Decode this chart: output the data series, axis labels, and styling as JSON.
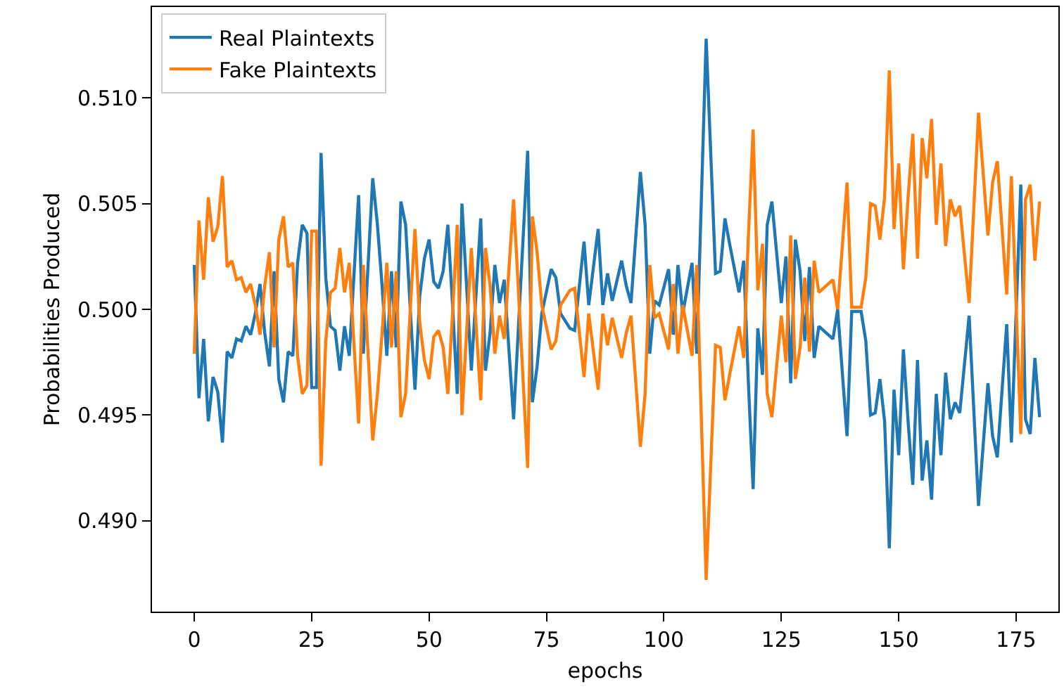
{
  "chart_data": {
    "type": "line",
    "xlabel": "epochs",
    "ylabel": "Probabilities Produced",
    "xlim": [
      -9,
      184
    ],
    "xticks": [
      0,
      25,
      50,
      75,
      100,
      125,
      150,
      175
    ],
    "ylim": [
      0.4857,
      0.5143
    ],
    "yticks": [
      {
        "value": 0.49,
        "label": "0.490"
      },
      {
        "value": 0.495,
        "label": "0.495"
      },
      {
        "value": 0.5,
        "label": "0.500"
      },
      {
        "value": 0.505,
        "label": "0.505"
      },
      {
        "value": 0.51,
        "label": "0.510"
      }
    ],
    "grid": false,
    "legend": "top left",
    "marker": "none",
    "line_style": "solid",
    "series": [
      {
        "name": "Real Plaintexts",
        "color": "#1f77b4",
        "x": [
          0,
          1,
          2,
          3,
          4,
          5,
          6,
          7,
          8,
          9,
          10,
          11,
          12,
          13,
          14,
          15,
          16,
          17,
          18,
          19,
          20,
          21,
          22,
          23,
          24,
          25,
          26,
          27,
          28,
          29,
          30,
          31,
          32,
          33,
          35,
          36,
          38,
          39,
          40,
          41,
          42,
          43,
          44,
          45,
          46,
          47,
          48,
          49,
          50,
          51,
          52,
          53,
          54,
          55,
          56,
          57,
          59,
          61,
          62,
          63,
          64,
          65,
          66,
          68,
          71,
          72,
          73,
          74,
          76,
          77,
          78,
          80,
          81,
          83,
          84,
          86,
          87,
          88,
          89,
          91,
          92,
          93,
          95,
          96,
          97,
          98,
          99,
          101,
          102,
          103,
          104,
          106,
          107,
          109,
          111,
          112,
          113,
          114,
          116,
          117,
          118,
          119,
          120,
          121,
          122,
          123,
          125,
          126,
          127,
          128,
          129,
          130,
          131,
          132,
          133,
          136,
          137,
          139,
          140,
          142,
          143,
          144,
          145,
          146,
          147,
          148,
          149,
          150,
          151,
          152,
          153,
          154,
          155,
          156,
          157,
          158,
          159,
          160,
          161,
          162,
          163,
          165,
          167,
          169,
          170,
          171,
          173,
          174,
          176,
          177,
          178,
          179,
          180
        ],
        "values": [
          0.5021,
          0.4958,
          0.4986,
          0.4947,
          0.4968,
          0.4961,
          0.4937,
          0.498,
          0.4977,
          0.4986,
          0.4985,
          0.4992,
          0.4988,
          0.4998,
          0.5012,
          0.4989,
          0.4973,
          0.5018,
          0.4967,
          0.4956,
          0.498,
          0.4978,
          0.5022,
          0.504,
          0.5036,
          0.4963,
          0.4963,
          0.5074,
          0.5015,
          0.4992,
          0.499,
          0.4971,
          0.4992,
          0.4978,
          0.5054,
          0.4979,
          0.5062,
          0.504,
          0.5011,
          0.4978,
          0.5018,
          0.4982,
          0.5051,
          0.504,
          0.5,
          0.4962,
          0.5006,
          0.5024,
          0.5033,
          0.5013,
          0.501,
          0.5018,
          0.504,
          0.5002,
          0.496,
          0.505,
          0.4971,
          0.5043,
          0.4971,
          0.4989,
          0.5021,
          0.5003,
          0.5014,
          0.4948,
          0.5075,
          0.4956,
          0.4973,
          0.4998,
          0.5019,
          0.5015,
          0.4998,
          0.4991,
          0.499,
          0.5032,
          0.5002,
          0.5038,
          0.5002,
          0.5017,
          0.5004,
          0.5023,
          0.5011,
          0.5003,
          0.5065,
          0.504,
          0.4979,
          0.5004,
          0.5002,
          0.5019,
          0.4988,
          0.5021,
          0.4998,
          0.5022,
          0.4979,
          0.5128,
          0.5017,
          0.5018,
          0.5043,
          0.5031,
          0.5008,
          0.5023,
          0.4965,
          0.4915,
          0.4991,
          0.4969,
          0.504,
          0.5051,
          0.5003,
          0.5025,
          0.4965,
          0.5033,
          0.5018,
          0.4985,
          0.502,
          0.4977,
          0.4992,
          0.4986,
          0.5,
          0.494,
          0.4999,
          0.4999,
          0.4985,
          0.495,
          0.4951,
          0.4967,
          0.4947,
          0.4887,
          0.4962,
          0.4931,
          0.4981,
          0.4947,
          0.4917,
          0.4976,
          0.4919,
          0.4938,
          0.491,
          0.496,
          0.4931,
          0.497,
          0.4948,
          0.4956,
          0.4951,
          0.4997,
          0.4907,
          0.4965,
          0.494,
          0.493,
          0.4993,
          0.4937,
          0.5059,
          0.4948,
          0.4941,
          0.4977,
          0.4949
        ]
      },
      {
        "name": "Fake Plaintexts",
        "color": "#ff7f0e",
        "x": [
          0,
          1,
          2,
          3,
          4,
          5,
          6,
          7,
          8,
          9,
          10,
          11,
          12,
          13,
          14,
          15,
          16,
          17,
          18,
          19,
          20,
          21,
          22,
          23,
          24,
          25,
          26,
          27,
          28,
          29,
          30,
          31,
          32,
          33,
          35,
          36,
          38,
          39,
          40,
          41,
          42,
          43,
          44,
          45,
          46,
          47,
          48,
          49,
          50,
          51,
          52,
          53,
          54,
          55,
          56,
          57,
          59,
          61,
          62,
          63,
          64,
          65,
          66,
          68,
          71,
          72,
          73,
          74,
          76,
          77,
          78,
          80,
          81,
          83,
          84,
          86,
          87,
          88,
          89,
          91,
          92,
          93,
          95,
          96,
          97,
          98,
          99,
          101,
          102,
          103,
          104,
          106,
          107,
          109,
          111,
          112,
          113,
          114,
          116,
          117,
          118,
          119,
          120,
          121,
          122,
          123,
          125,
          126,
          127,
          128,
          129,
          130,
          131,
          132,
          133,
          136,
          137,
          139,
          140,
          142,
          143,
          144,
          145,
          146,
          147,
          148,
          149,
          150,
          151,
          152,
          153,
          154,
          155,
          156,
          157,
          158,
          159,
          160,
          161,
          162,
          163,
          165,
          167,
          169,
          170,
          171,
          173,
          174,
          176,
          177,
          178,
          179,
          180
        ],
        "values": [
          0.4979,
          0.5042,
          0.5014,
          0.5053,
          0.5032,
          0.5039,
          0.5063,
          0.502,
          0.5023,
          0.5014,
          0.5015,
          0.5008,
          0.5012,
          0.5002,
          0.4988,
          0.5011,
          0.5027,
          0.4982,
          0.5033,
          0.5044,
          0.502,
          0.5022,
          0.4978,
          0.496,
          0.4964,
          0.5037,
          0.5037,
          0.4926,
          0.4985,
          0.5008,
          0.501,
          0.5029,
          0.5008,
          0.5022,
          0.4946,
          0.5021,
          0.4938,
          0.496,
          0.4989,
          0.5022,
          0.4982,
          0.5018,
          0.4949,
          0.496,
          0.5,
          0.5038,
          0.4994,
          0.4976,
          0.4967,
          0.4987,
          0.499,
          0.4982,
          0.496,
          0.4998,
          0.504,
          0.495,
          0.5029,
          0.4957,
          0.5029,
          0.5011,
          0.4979,
          0.4997,
          0.4986,
          0.5052,
          0.4925,
          0.5044,
          0.5027,
          0.5002,
          0.4981,
          0.4985,
          0.5002,
          0.5009,
          0.501,
          0.4968,
          0.4998,
          0.4962,
          0.4998,
          0.4983,
          0.4996,
          0.4977,
          0.4989,
          0.4997,
          0.4935,
          0.496,
          0.5021,
          0.4996,
          0.4998,
          0.4981,
          0.5012,
          0.4979,
          0.5002,
          0.4978,
          0.5021,
          0.4872,
          0.4983,
          0.4982,
          0.4957,
          0.4969,
          0.4992,
          0.4977,
          0.5035,
          0.5085,
          0.5009,
          0.5031,
          0.496,
          0.4949,
          0.4997,
          0.4975,
          0.5035,
          0.4967,
          0.4982,
          0.5015,
          0.498,
          0.5023,
          0.5008,
          0.5014,
          0.5,
          0.506,
          0.5001,
          0.5001,
          0.5015,
          0.505,
          0.5049,
          0.5033,
          0.5053,
          0.5113,
          0.5038,
          0.5069,
          0.5019,
          0.5053,
          0.5083,
          0.5024,
          0.5081,
          0.5062,
          0.509,
          0.504,
          0.5069,
          0.503,
          0.5052,
          0.5044,
          0.5049,
          0.5003,
          0.5093,
          0.5035,
          0.506,
          0.507,
          0.5007,
          0.5063,
          0.4941,
          0.5052,
          0.5059,
          0.5023,
          0.5051
        ]
      }
    ]
  }
}
